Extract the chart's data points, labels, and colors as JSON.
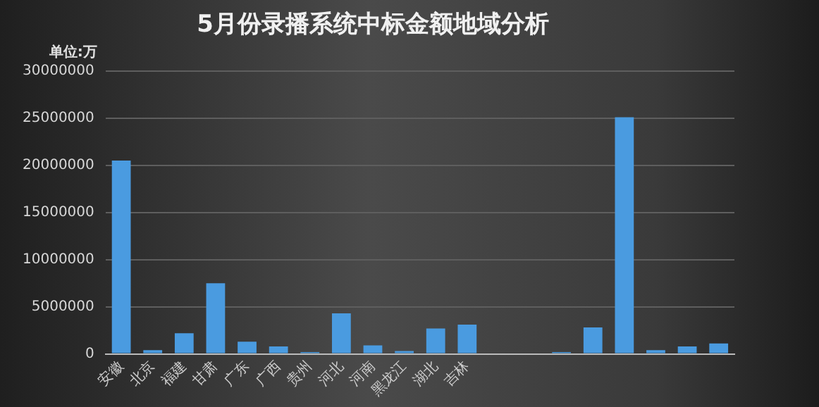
{
  "chart_data": {
    "type": "bar",
    "title": "5月份录播系统中标金额地域分析",
    "ylabel": "单位:万",
    "categories": [
      "安徽",
      "北京",
      "福建",
      "甘肃",
      "广东",
      "广西",
      "贵州",
      "河北",
      "河南",
      "黑龙江",
      "湖北",
      "吉林",
      null,
      null,
      null,
      null,
      null,
      null,
      null,
      null
    ],
    "values": [
      20500000,
      400000,
      2200000,
      7500000,
      1300000,
      800000,
      200000,
      4300000,
      900000,
      300000,
      2700000,
      3100000,
      0,
      0,
      200000,
      2800000,
      25100000,
      400000,
      800000,
      1100000
    ],
    "color": "#4a9be0",
    "ylim": [
      0,
      30000000
    ],
    "yticks": [
      0,
      5000000,
      10000000,
      15000000,
      20000000,
      25000000,
      30000000
    ],
    "grid": "y",
    "legend": false
  }
}
